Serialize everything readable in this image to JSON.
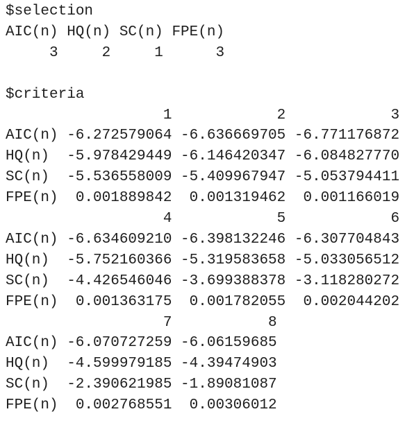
{
  "selection": {
    "label": "$selection",
    "headers": [
      "AIC(n)",
      "HQ(n)",
      "SC(n)",
      "FPE(n)"
    ],
    "values": [
      "3",
      "2",
      "1",
      "3"
    ]
  },
  "criteria": {
    "label": "$criteria",
    "blocks": [
      {
        "columns": [
          "1",
          "2",
          "3"
        ],
        "rows": [
          {
            "name": "AIC(n)",
            "values": [
              "-6.272579064",
              "-6.636669705",
              "-6.771176872"
            ]
          },
          {
            "name": "HQ(n)",
            "values": [
              "-5.978429449",
              "-6.146420347",
              "-6.084827770"
            ]
          },
          {
            "name": "SC(n)",
            "values": [
              "-5.536558009",
              "-5.409967947",
              "-5.053794411"
            ]
          },
          {
            "name": "FPE(n)",
            "values": [
              "0.001889842",
              "0.001319462",
              "0.001166019"
            ]
          }
        ]
      },
      {
        "columns": [
          "4",
          "5",
          "6"
        ],
        "rows": [
          {
            "name": "AIC(n)",
            "values": [
              "-6.634609210",
              "-6.398132246",
              "-6.307704843"
            ]
          },
          {
            "name": "HQ(n)",
            "values": [
              "-5.752160366",
              "-5.319583658",
              "-5.033056512"
            ]
          },
          {
            "name": "SC(n)",
            "values": [
              "-4.426546046",
              "-3.699388378",
              "-3.118280272"
            ]
          },
          {
            "name": "FPE(n)",
            "values": [
              "0.001363175",
              "0.001782055",
              "0.002044202"
            ]
          }
        ]
      },
      {
        "columns": [
          "7",
          "8"
        ],
        "rows": [
          {
            "name": "AIC(n)",
            "values": [
              "-6.070727259",
              "-6.06159685"
            ]
          },
          {
            "name": "HQ(n)",
            "values": [
              "-4.599979185",
              "-4.39474903"
            ]
          },
          {
            "name": "SC(n)",
            "values": [
              "-2.390621985",
              "-1.89081087"
            ]
          },
          {
            "name": "FPE(n)",
            "values": [
              "0.002768551",
              "0.00306012"
            ]
          }
        ]
      }
    ]
  }
}
